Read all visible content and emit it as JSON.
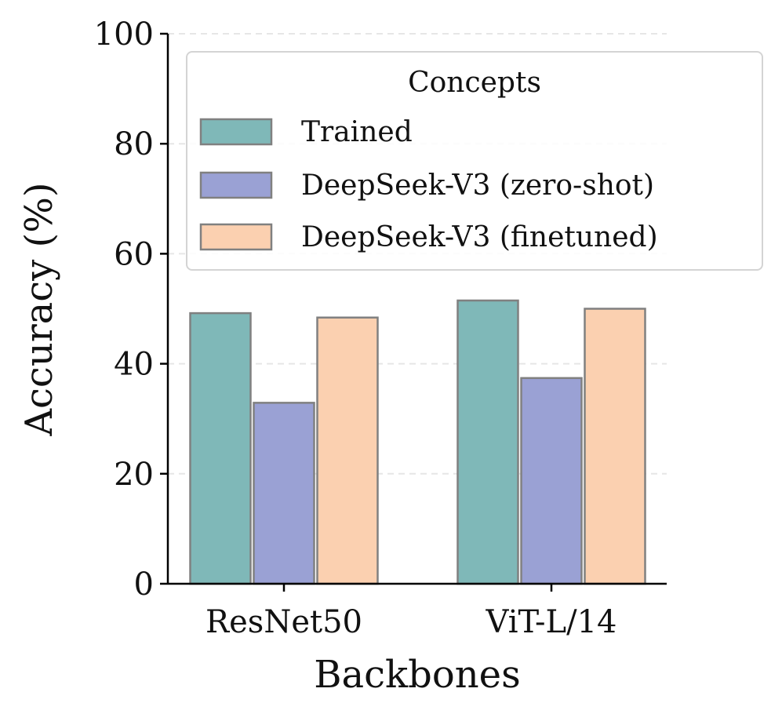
{
  "chart_data": {
    "type": "bar",
    "title": "",
    "xlabel": "Backbones",
    "ylabel": "Accuracy (%)",
    "ylim": [
      0,
      100
    ],
    "yticks": [
      0,
      20,
      40,
      60,
      80,
      100
    ],
    "grid": "horizontal dashed",
    "categories": [
      "ResNet50",
      "ViT-L/14"
    ],
    "series": [
      {
        "name": "Trained",
        "values": [
          49.2,
          51.5
        ],
        "color": "#7fb8b8"
      },
      {
        "name": "DeepSeek-V3 (zero-shot)",
        "values": [
          32.9,
          37.4
        ],
        "color": "#9aa1d4"
      },
      {
        "name": "DeepSeek-V3 (finetuned)",
        "values": [
          48.4,
          50.0
        ],
        "color": "#fbd0b0"
      }
    ],
    "bar_edge_color": "#808080",
    "legend": {
      "title": "Concepts",
      "placement": "top-right"
    }
  }
}
